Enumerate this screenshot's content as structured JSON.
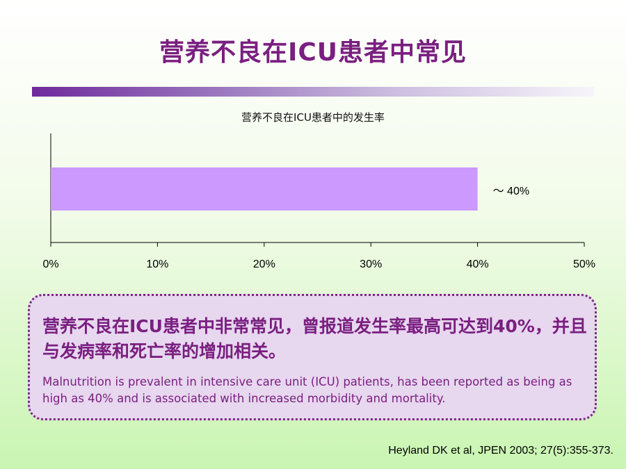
{
  "slide": {
    "title": "营养不良在ICU患者中常见"
  },
  "chart_data": {
    "type": "bar",
    "orientation": "horizontal",
    "title": "营养不良在ICU患者中的发生率",
    "categories": [
      ""
    ],
    "values": [
      40
    ],
    "value_label": "～ 40%",
    "xlim": [
      0,
      50
    ],
    "xticks": [
      0,
      10,
      20,
      30,
      40,
      50
    ],
    "tick_labels": [
      "0%",
      "10%",
      "20%",
      "30%",
      "40%",
      "50%"
    ],
    "bar_color": "#cc99ff",
    "grid": false
  },
  "callout": {
    "zh_text": "营养不良在ICU患者中非常常见，曾报道发生率最高可达到40%，并且与发病率和死亡率的增加相关。",
    "en_text": "Malnutrition is prevalent in intensive care unit (ICU) patients, has been reported as being as high as 40% and is associated with increased morbidity and mortality."
  },
  "reference": "Heyland DK et al, JPEN 2003; 27(5):355-373.",
  "colors": {
    "title": "#7a1f80",
    "accent_bar_start": "#6f2a9c",
    "callout_bg": "#e7d7ef",
    "callout_border": "#7a2a80"
  }
}
